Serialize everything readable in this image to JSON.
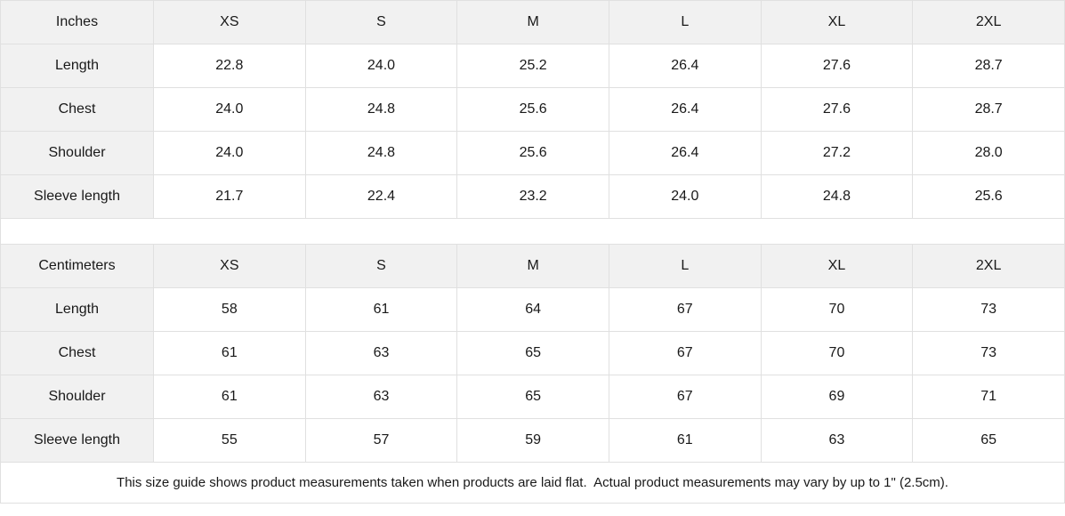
{
  "colors": {
    "header_bg": "#f1f1f1",
    "border": "#e0e0e0",
    "text": "#191919",
    "page_bg": "#ffffff"
  },
  "size_guide": {
    "sections": [
      {
        "unit_label": "Inches",
        "size_headers": [
          "XS",
          "S",
          "M",
          "L",
          "XL",
          "2XL"
        ],
        "rows": [
          {
            "label": "Length",
            "values": [
              "22.8",
              "24.0",
              "25.2",
              "26.4",
              "27.6",
              "28.7"
            ]
          },
          {
            "label": "Chest",
            "values": [
              "24.0",
              "24.8",
              "25.6",
              "26.4",
              "27.6",
              "28.7"
            ]
          },
          {
            "label": "Shoulder",
            "values": [
              "24.0",
              "24.8",
              "25.6",
              "26.4",
              "27.2",
              "28.0"
            ]
          },
          {
            "label": "Sleeve length",
            "values": [
              "21.7",
              "22.4",
              "23.2",
              "24.0",
              "24.8",
              "25.6"
            ]
          }
        ]
      },
      {
        "unit_label": "Centimeters",
        "size_headers": [
          "XS",
          "S",
          "M",
          "L",
          "XL",
          "2XL"
        ],
        "rows": [
          {
            "label": "Length",
            "values": [
              "58",
              "61",
              "64",
              "67",
              "70",
              "73"
            ]
          },
          {
            "label": "Chest",
            "values": [
              "61",
              "63",
              "65",
              "67",
              "70",
              "73"
            ]
          },
          {
            "label": "Shoulder",
            "values": [
              "61",
              "63",
              "65",
              "67",
              "69",
              "71"
            ]
          },
          {
            "label": "Sleeve length",
            "values": [
              "55",
              "57",
              "59",
              "61",
              "63",
              "65"
            ]
          }
        ]
      }
    ],
    "footer_note": "This size guide shows product measurements taken when products are laid flat.  Actual product measurements may vary by up to 1\" (2.5cm)."
  }
}
